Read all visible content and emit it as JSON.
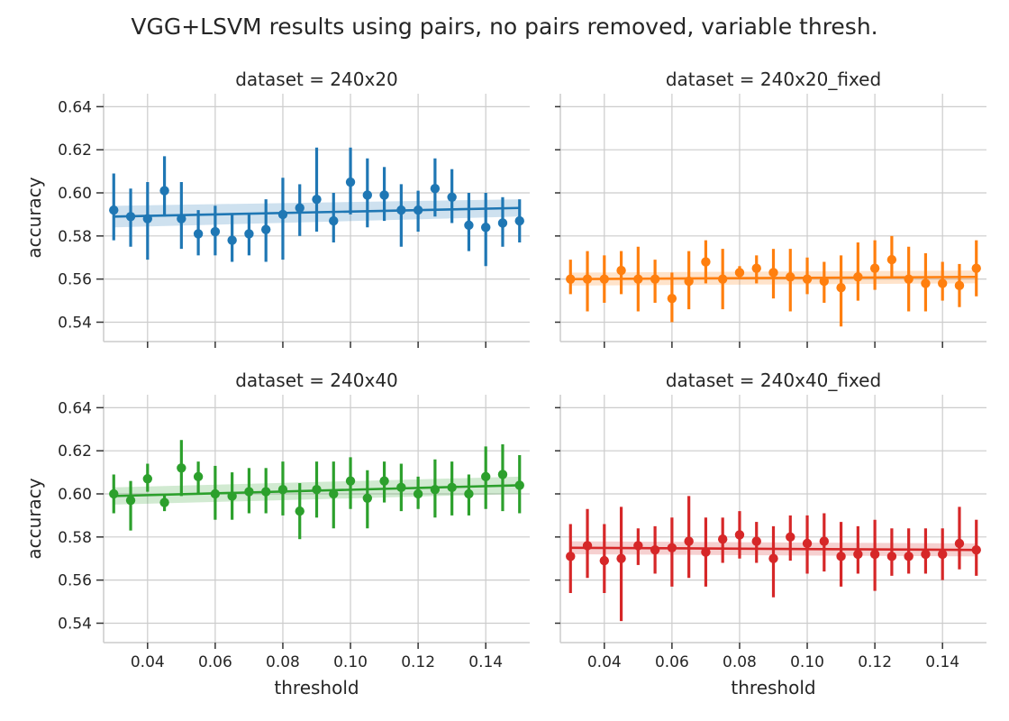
{
  "title": "VGG+LSVM results using pairs, no pairs removed, variable thresh.",
  "chart_data": {
    "type": "scatter",
    "title": "VGG+LSVM results using pairs, no pairs removed, variable thresh.",
    "xlabel": "threshold",
    "ylabel": "accuracy",
    "xlim": [
      0.027,
      0.153
    ],
    "ylim": [
      0.531,
      0.646
    ],
    "xticks": [
      "0.04",
      "0.06",
      "0.08",
      "0.10",
      "0.12",
      "0.14"
    ],
    "xtick_values": [
      0.04,
      0.06,
      0.08,
      0.1,
      0.12,
      0.14
    ],
    "yticks": [
      "0.54",
      "0.56",
      "0.58",
      "0.60",
      "0.62",
      "0.64"
    ],
    "ytick_values": [
      0.54,
      0.56,
      0.58,
      0.6,
      0.62,
      0.64
    ],
    "grid": true,
    "x": [
      0.03,
      0.035,
      0.04,
      0.045,
      0.05,
      0.055,
      0.06,
      0.065,
      0.07,
      0.075,
      0.08,
      0.085,
      0.09,
      0.095,
      0.1,
      0.105,
      0.11,
      0.115,
      0.12,
      0.125,
      0.13,
      0.135,
      0.14,
      0.145,
      0.15
    ],
    "panels": [
      {
        "title": "dataset = 240x20",
        "color": "#1f77b4",
        "values": [
          0.592,
          0.589,
          0.588,
          0.601,
          0.588,
          0.581,
          0.582,
          0.578,
          0.581,
          0.583,
          0.59,
          0.593,
          0.597,
          0.587,
          0.605,
          0.599,
          0.599,
          0.592,
          0.592,
          0.602,
          0.598,
          0.585,
          0.584,
          0.586,
          0.587
        ],
        "ci_low": [
          0.578,
          0.575,
          0.569,
          0.589,
          0.574,
          0.571,
          0.571,
          0.568,
          0.571,
          0.568,
          0.569,
          0.58,
          0.582,
          0.577,
          0.59,
          0.584,
          0.587,
          0.575,
          0.582,
          0.589,
          0.586,
          0.573,
          0.566,
          0.575,
          0.577
        ],
        "ci_high": [
          0.609,
          0.602,
          0.605,
          0.617,
          0.605,
          0.592,
          0.594,
          0.59,
          0.59,
          0.597,
          0.607,
          0.604,
          0.621,
          0.6,
          0.621,
          0.616,
          0.612,
          0.604,
          0.601,
          0.616,
          0.611,
          0.6,
          0.6,
          0.598,
          0.597
        ],
        "trend": [
          0.589,
          0.593
        ],
        "trend_band": [
          0.005,
          0.004
        ]
      },
      {
        "title": "dataset = 240x20_fixed",
        "color": "#ff7f0e",
        "values": [
          0.56,
          0.56,
          0.56,
          0.564,
          0.56,
          0.56,
          0.551,
          0.559,
          0.568,
          0.56,
          0.563,
          0.565,
          0.563,
          0.561,
          0.56,
          0.559,
          0.556,
          0.561,
          0.565,
          0.569,
          0.56,
          0.558,
          0.558,
          0.557,
          0.565
        ],
        "ci_low": [
          0.553,
          0.545,
          0.549,
          0.553,
          0.545,
          0.549,
          0.54,
          0.546,
          0.558,
          0.546,
          0.56,
          0.558,
          0.551,
          0.545,
          0.553,
          0.549,
          0.538,
          0.55,
          0.555,
          0.561,
          0.545,
          0.545,
          0.55,
          0.547,
          0.552
        ],
        "ci_high": [
          0.569,
          0.573,
          0.571,
          0.573,
          0.575,
          0.569,
          0.563,
          0.573,
          0.578,
          0.574,
          0.566,
          0.571,
          0.574,
          0.574,
          0.57,
          0.568,
          0.571,
          0.577,
          0.578,
          0.58,
          0.575,
          0.572,
          0.568,
          0.567,
          0.578
        ],
        "trend": [
          0.56,
          0.561
        ],
        "trend_band": [
          0.003,
          0.003
        ]
      },
      {
        "title": "dataset = 240x40",
        "color": "#2ca02c",
        "values": [
          0.6,
          0.597,
          0.607,
          0.596,
          0.612,
          0.608,
          0.6,
          0.599,
          0.601,
          0.601,
          0.602,
          0.592,
          0.602,
          0.6,
          0.606,
          0.598,
          0.606,
          0.603,
          0.6,
          0.602,
          0.603,
          0.6,
          0.608,
          0.609,
          0.604
        ],
        "ci_low": [
          0.591,
          0.583,
          0.601,
          0.592,
          0.599,
          0.6,
          0.588,
          0.588,
          0.591,
          0.591,
          0.59,
          0.579,
          0.589,
          0.584,
          0.593,
          0.584,
          0.596,
          0.592,
          0.593,
          0.589,
          0.59,
          0.59,
          0.593,
          0.592,
          0.591
        ],
        "ci_high": [
          0.609,
          0.606,
          0.614,
          0.6,
          0.625,
          0.615,
          0.613,
          0.61,
          0.612,
          0.612,
          0.615,
          0.605,
          0.615,
          0.615,
          0.617,
          0.611,
          0.615,
          0.614,
          0.608,
          0.616,
          0.615,
          0.609,
          0.622,
          0.623,
          0.618
        ],
        "trend": [
          0.599,
          0.604
        ],
        "trend_band": [
          0.004,
          0.004
        ]
      },
      {
        "title": "dataset = 240x40_fixed",
        "color": "#d62728",
        "values": [
          0.571,
          0.576,
          0.569,
          0.57,
          0.576,
          0.574,
          0.575,
          0.578,
          0.573,
          0.579,
          0.581,
          0.578,
          0.57,
          0.58,
          0.577,
          0.578,
          0.571,
          0.572,
          0.572,
          0.571,
          0.571,
          0.572,
          0.572,
          0.577,
          0.574
        ],
        "ci_low": [
          0.554,
          0.561,
          0.554,
          0.541,
          0.567,
          0.563,
          0.557,
          0.561,
          0.557,
          0.568,
          0.57,
          0.568,
          0.552,
          0.569,
          0.563,
          0.564,
          0.557,
          0.563,
          0.555,
          0.562,
          0.563,
          0.563,
          0.56,
          0.565,
          0.562
        ],
        "ci_high": [
          0.586,
          0.593,
          0.586,
          0.594,
          0.584,
          0.585,
          0.589,
          0.599,
          0.589,
          0.589,
          0.592,
          0.587,
          0.585,
          0.59,
          0.59,
          0.591,
          0.587,
          0.585,
          0.588,
          0.584,
          0.584,
          0.584,
          0.584,
          0.594,
          0.588
        ],
        "trend": [
          0.575,
          0.574
        ],
        "trend_band": [
          0.003,
          0.003
        ]
      }
    ]
  }
}
